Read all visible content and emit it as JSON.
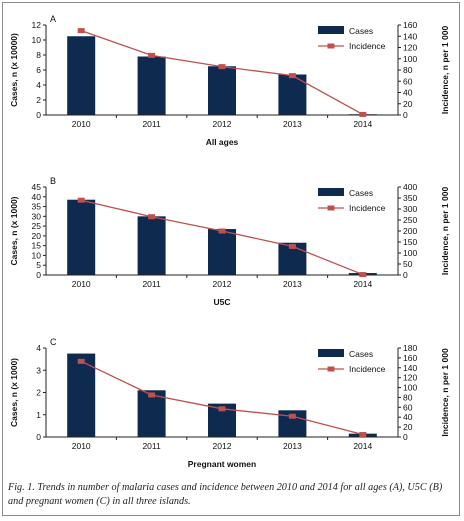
{
  "caption": "Fig. 1. Trends in number of malaria cases and incidence between 2010 and 2014 for all ages (A), U5C (B) and pregnant women (C) in all three islands.",
  "colors": {
    "bar": "#0f2a4f",
    "line": "#c0504d",
    "axis": "#222222"
  },
  "chart_data": [
    {
      "type": "bar",
      "panel_label": "A",
      "categories": [
        "2010",
        "2011",
        "2012",
        "2013",
        "2014"
      ],
      "series": [
        {
          "name": "Cases",
          "type": "bar",
          "axis": "left",
          "values": [
            10.5,
            7.8,
            6.5,
            5.4,
            0.1
          ]
        },
        {
          "name": "Incidence",
          "type": "line",
          "axis": "right",
          "values": [
            150,
            106,
            86,
            70,
            1
          ]
        }
      ],
      "xlabel": "All ages",
      "ylabel": "Cases, n (x 10000)",
      "y2label": "Incidence, n per 1 000",
      "ylim": [
        0,
        12
      ],
      "yticks": [
        0,
        2,
        4,
        6,
        8,
        10,
        12
      ],
      "y2lim": [
        0,
        160
      ],
      "y2ticks": [
        0,
        20,
        40,
        60,
        80,
        100,
        120,
        140,
        160
      ],
      "legend": "top-right",
      "grid": false
    },
    {
      "type": "bar",
      "panel_label": "B",
      "categories": [
        "2010",
        "2011",
        "2012",
        "2013",
        "2014"
      ],
      "series": [
        {
          "name": "Cases",
          "type": "bar",
          "axis": "left",
          "values": [
            38.5,
            30,
            23.5,
            16.5,
            1
          ]
        },
        {
          "name": "Incidence",
          "type": "line",
          "axis": "right",
          "values": [
            340,
            265,
            200,
            130,
            2
          ]
        }
      ],
      "xlabel": "U5C",
      "ylabel": "Cases, n (x 1000)",
      "y2label": "Incidence, n per 1 000",
      "ylim": [
        0,
        45
      ],
      "yticks": [
        0,
        5,
        10,
        15,
        20,
        25,
        30,
        35,
        40,
        45
      ],
      "y2lim": [
        0,
        400
      ],
      "y2ticks": [
        0,
        50,
        100,
        150,
        200,
        250,
        300,
        350,
        400
      ],
      "legend": "top-right",
      "grid": false
    },
    {
      "type": "bar",
      "panel_label": "C",
      "categories": [
        "2010",
        "2011",
        "2012",
        "2013",
        "2014"
      ],
      "series": [
        {
          "name": "Cases",
          "type": "bar",
          "axis": "left",
          "values": [
            3.75,
            2.1,
            1.5,
            1.2,
            0.15
          ]
        },
        {
          "name": "Incidence",
          "type": "line",
          "axis": "right",
          "values": [
            153,
            85,
            57,
            42,
            5
          ]
        }
      ],
      "xlabel": "Pregnant women",
      "ylabel": "Cases, n (x 1000)",
      "y2label": "Incidence, n per 1 000",
      "ylim": [
        0,
        4
      ],
      "yticks": [
        0,
        1,
        2,
        3,
        4
      ],
      "y2lim": [
        0,
        180
      ],
      "y2ticks": [
        0,
        20,
        40,
        60,
        80,
        100,
        120,
        140,
        160,
        180
      ],
      "legend": "top-right",
      "grid": false
    }
  ]
}
